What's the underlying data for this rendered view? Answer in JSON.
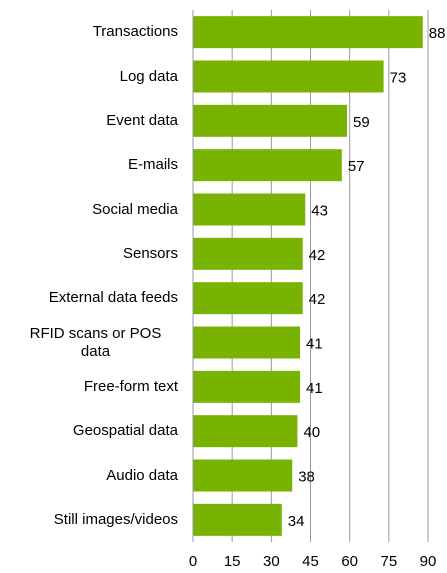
{
  "chart_data": {
    "type": "barh",
    "categories": [
      "Transactions",
      "Log data",
      "Event data",
      "E-mails",
      "Social media",
      "Sensors",
      "External data feeds",
      "RFID scans or POS data",
      "Free-form text",
      "Geospatial data",
      "Audio data",
      "Still images/videos"
    ],
    "values": [
      88,
      73,
      59,
      57,
      43,
      42,
      42,
      41,
      41,
      40,
      38,
      34
    ],
    "color": "#77b300",
    "xlim": [
      0,
      90
    ],
    "xticks": [
      0,
      15,
      30,
      45,
      60,
      75,
      90
    ],
    "grid": true
  }
}
